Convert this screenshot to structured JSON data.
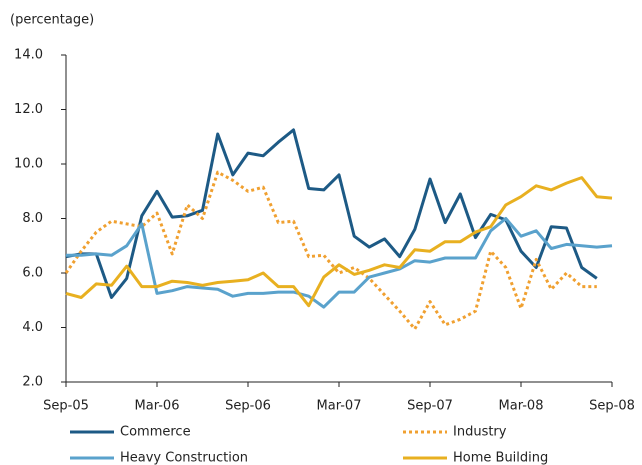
{
  "chart_data": {
    "type": "line",
    "ylabel": "(percentage)",
    "categories": [
      "Sep-05",
      null,
      null,
      null,
      null,
      null,
      "Mar-06",
      null,
      null,
      null,
      null,
      null,
      "Sep-06",
      null,
      null,
      null,
      null,
      null,
      "Mar-07",
      null,
      null,
      null,
      null,
      null,
      "Sep-07",
      null,
      null,
      null,
      null,
      null,
      "Mar-08",
      null,
      null,
      null,
      null,
      null,
      "Sep-08"
    ],
    "ylim": [
      2,
      14
    ],
    "yticks": [
      {
        "value": 2,
        "label": "2.0"
      },
      {
        "value": 4,
        "label": "4.0"
      },
      {
        "value": 6,
        "label": "6.0"
      },
      {
        "value": 8,
        "label": "8.0"
      },
      {
        "value": 10,
        "label": "10.0"
      },
      {
        "value": 12,
        "label": "12.0"
      },
      {
        "value": 14,
        "label": "14.0"
      }
    ],
    "series": [
      {
        "name": "Commerce",
        "color": "#1d5a85",
        "dashed": false,
        "values": [
          6.6,
          6.7,
          6.7,
          5.1,
          5.8,
          8.1,
          9.0,
          8.05,
          8.1,
          8.3,
          11.1,
          9.6,
          10.4,
          10.3,
          10.8,
          11.25,
          9.1,
          9.05,
          9.6,
          7.35,
          6.95,
          7.25,
          6.6,
          7.6,
          9.45,
          7.85,
          8.9,
          7.3,
          8.15,
          7.95,
          6.8,
          6.2,
          7.7,
          7.65,
          6.2,
          5.8,
          null
        ]
      },
      {
        "name": "Industry",
        "color": "#f0a030",
        "dashed": true,
        "values": [
          6.0,
          6.8,
          7.5,
          7.9,
          7.8,
          7.7,
          8.2,
          6.7,
          8.5,
          8.0,
          9.7,
          9.4,
          9.0,
          9.15,
          7.85,
          7.9,
          6.6,
          6.65,
          6.0,
          6.2,
          5.8,
          5.2,
          4.6,
          3.95,
          4.95,
          4.1,
          4.3,
          4.6,
          6.8,
          6.2,
          4.7,
          6.5,
          5.4,
          6.0,
          5.5,
          5.5,
          null
        ]
      },
      {
        "name": "Heavy Construction",
        "color": "#5aa2cc",
        "dashed": false,
        "values": [
          6.65,
          6.65,
          6.7,
          6.65,
          7.0,
          7.8,
          5.25,
          5.35,
          5.5,
          5.45,
          5.4,
          5.15,
          5.25,
          5.25,
          5.3,
          5.3,
          5.15,
          4.75,
          5.3,
          5.3,
          5.85,
          6.0,
          6.15,
          6.45,
          6.4,
          6.55,
          6.55,
          6.55,
          7.55,
          8.0,
          7.35,
          7.55,
          6.9,
          7.05,
          7.0,
          6.95,
          7.0
        ]
      },
      {
        "name": "Home Building",
        "color": "#e8b020",
        "dashed": false,
        "values": [
          5.25,
          5.1,
          5.6,
          5.55,
          6.25,
          5.5,
          5.5,
          5.7,
          5.65,
          5.55,
          5.65,
          5.7,
          5.75,
          6.0,
          5.5,
          5.5,
          4.8,
          5.85,
          6.3,
          5.95,
          6.1,
          6.3,
          6.2,
          6.85,
          6.8,
          7.15,
          7.15,
          7.5,
          7.7,
          8.5,
          8.8,
          9.2,
          9.05,
          9.3,
          9.5,
          8.8,
          8.75
        ]
      }
    ]
  }
}
